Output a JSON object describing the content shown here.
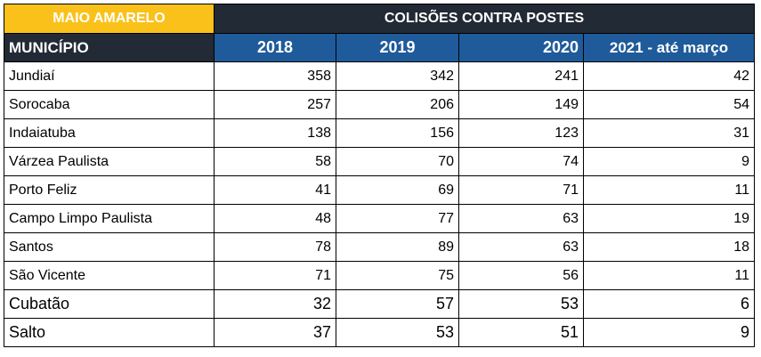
{
  "header": {
    "tag": "MAIO AMARELO",
    "group_title": "COLISÕES CONTRA POSTES",
    "first_column": "MUNICÍPIO",
    "years": [
      "2018",
      "2019",
      "2020",
      "2021 - até março"
    ]
  },
  "rows": [
    {
      "municipio": "Jundiaí",
      "values": [
        "358",
        "342",
        "241",
        "42"
      ]
    },
    {
      "municipio": "Sorocaba",
      "values": [
        "257",
        "206",
        "149",
        "54"
      ]
    },
    {
      "municipio": "Indaiatuba",
      "values": [
        "138",
        "156",
        "123",
        "31"
      ]
    },
    {
      "municipio": "Várzea Paulista",
      "values": [
        "58",
        "70",
        "74",
        "9"
      ]
    },
    {
      "municipio": "Porto Feliz",
      "values": [
        "41",
        "69",
        "71",
        "11"
      ]
    },
    {
      "municipio": "Campo Limpo Paulista",
      "values": [
        "48",
        "77",
        "63",
        "19"
      ]
    },
    {
      "municipio": "Santos",
      "values": [
        "78",
        "89",
        "63",
        "18"
      ]
    },
    {
      "municipio": "São Vicente",
      "values": [
        "71",
        "75",
        "56",
        "11"
      ]
    },
    {
      "municipio": "Cubatão",
      "values": [
        "32",
        "57",
        "53",
        "6"
      ]
    },
    {
      "municipio": "Salto",
      "values": [
        "37",
        "53",
        "51",
        "9"
      ]
    }
  ],
  "colors": {
    "tag_bg": "#f9c11a",
    "dark_header_bg": "#222a35",
    "year_header_bg": "#1f5b9a"
  }
}
